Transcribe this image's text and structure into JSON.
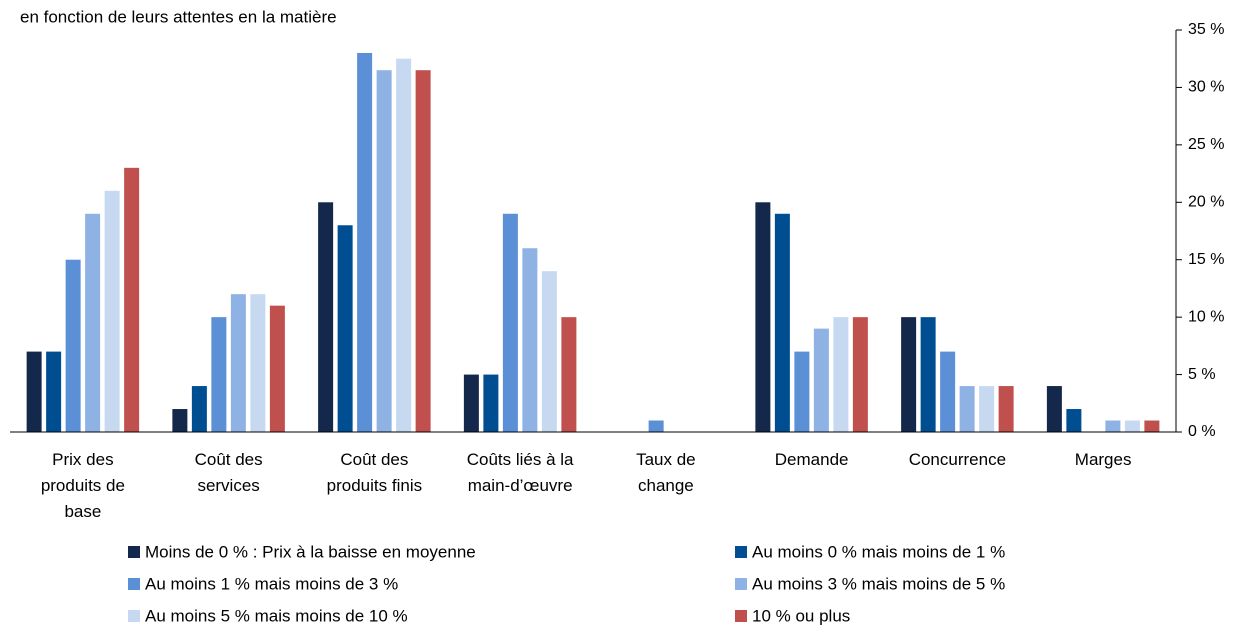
{
  "chart_data": {
    "type": "bar",
    "title": "en fonction de leurs attentes en la matière",
    "categories": [
      "Prix des\nproduits de\nbase",
      "Coût des\nservices",
      "Coût des\nproduits finis",
      "Coûts liés à la\nmain-d’œuvre",
      "Taux de\nchange",
      "Demande",
      "Concurrence",
      "Marges"
    ],
    "series": [
      {
        "name": "Moins de 0 % : Prix à la baisse en moyenne",
        "color": "#14284b",
        "values": [
          7,
          2,
          20,
          5,
          0,
          20,
          10,
          4
        ]
      },
      {
        "name": "Au moins 0 % mais moins de 1 %",
        "color": "#004e92",
        "values": [
          7,
          4,
          18,
          5,
          0,
          19,
          10,
          2
        ]
      },
      {
        "name": "Au moins 1 % mais moins de 3 %",
        "color": "#5b8fd6",
        "values": [
          15,
          10,
          33,
          19,
          1,
          7,
          7,
          0
        ]
      },
      {
        "name": "Au moins 3 % mais moins de 5 %",
        "color": "#8fb2e4",
        "values": [
          19,
          12,
          31.5,
          16,
          0,
          9,
          4,
          1
        ]
      },
      {
        "name": "Au moins 5 % mais moins de 10 %",
        "color": "#c7d9f1",
        "values": [
          21,
          12,
          32.5,
          14,
          0,
          10,
          4,
          1
        ]
      },
      {
        "name": "10 % ou plus",
        "color": "#c0504d",
        "values": [
          23,
          11,
          31.5,
          10,
          0,
          10,
          4,
          1
        ]
      }
    ],
    "ylim": [
      0,
      35
    ],
    "yticks": [
      {
        "value": 0,
        "label": "0 %"
      },
      {
        "value": 5,
        "label": "5 %"
      },
      {
        "value": 10,
        "label": "10 %"
      },
      {
        "value": 15,
        "label": "15 %"
      },
      {
        "value": 20,
        "label": "20 %"
      },
      {
        "value": 25,
        "label": "25 %"
      },
      {
        "value": 30,
        "label": "30 %"
      },
      {
        "value": 35,
        "label": "35 %"
      }
    ],
    "y_axis_side": "right",
    "grid": false
  }
}
